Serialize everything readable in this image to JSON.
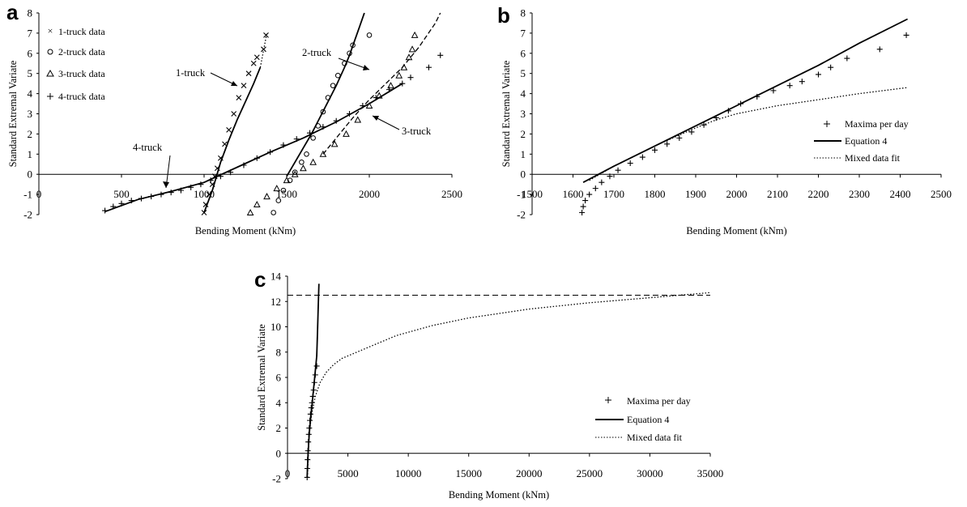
{
  "chart_data": [
    {
      "panel": "a",
      "type": "scatter",
      "xlabel": "Bending Moment (kNm)",
      "ylabel": "Standard Extremal Variate",
      "xlim": [
        0,
        2500
      ],
      "ylim": [
        -2,
        8
      ],
      "xticks": [
        "0",
        "500",
        "1000",
        "1500",
        "2000",
        "2500"
      ],
      "yticks": [
        "-2",
        "-1",
        "0",
        "1",
        "2",
        "3",
        "4",
        "5",
        "6",
        "7",
        "8"
      ],
      "legend_position": "top-left",
      "legend": [
        {
          "label": "1-truck data",
          "marker": "x"
        },
        {
          "label": "2-truck data",
          "marker": "o"
        },
        {
          "label": "3-truck data",
          "marker": "triangle"
        },
        {
          "label": "4-truck data",
          "marker": "+"
        }
      ],
      "annotations": [
        "1-truck",
        "2-truck",
        "3-truck",
        "4-truck"
      ],
      "series": [
        {
          "name": "1-truck data",
          "marker": "x",
          "x": [
            1000,
            1010,
            1030,
            1050,
            1065,
            1080,
            1100,
            1125,
            1150,
            1180,
            1210,
            1240,
            1270,
            1300,
            1320,
            1360,
            1375
          ],
          "y": [
            -1.9,
            -1.5,
            -1.0,
            -0.5,
            -0.1,
            0.3,
            0.8,
            1.5,
            2.2,
            3.0,
            3.8,
            4.4,
            5.0,
            5.5,
            5.8,
            6.2,
            6.9
          ]
        },
        {
          "name": "2-truck data",
          "marker": "o",
          "x": [
            1420,
            1450,
            1480,
            1520,
            1550,
            1590,
            1620,
            1660,
            1690,
            1720,
            1750,
            1780,
            1810,
            1850,
            1880,
            1900,
            2000
          ],
          "y": [
            -1.9,
            -1.3,
            -0.8,
            -0.3,
            0.1,
            0.6,
            1.0,
            1.8,
            2.4,
            3.1,
            3.8,
            4.4,
            4.9,
            5.5,
            6.0,
            6.4,
            6.9
          ]
        },
        {
          "name": "3-truck data",
          "marker": "triangle",
          "x": [
            1280,
            1320,
            1380,
            1440,
            1500,
            1550,
            1600,
            1660,
            1720,
            1790,
            1860,
            1930,
            2000,
            2060,
            2130,
            2180,
            2210,
            2240,
            2260,
            2275
          ],
          "y": [
            -1.9,
            -1.5,
            -1.1,
            -0.7,
            -0.3,
            0.0,
            0.3,
            0.6,
            1.0,
            1.5,
            2.0,
            2.7,
            3.4,
            3.9,
            4.4,
            4.9,
            5.3,
            5.8,
            6.2,
            6.9
          ]
        },
        {
          "name": "4-truck data",
          "marker": "+",
          "x": [
            400,
            450,
            500,
            560,
            620,
            680,
            740,
            800,
            860,
            920,
            980,
            1040,
            1100,
            1160,
            1240,
            1320,
            1400,
            1480,
            1560,
            1640,
            1720,
            1800,
            1880,
            1960,
            2040,
            2120,
            2200,
            2250,
            2360,
            2430
          ],
          "y": [
            -1.8,
            -1.6,
            -1.45,
            -1.3,
            -1.2,
            -1.1,
            -1.0,
            -0.9,
            -0.8,
            -0.65,
            -0.5,
            -0.3,
            -0.1,
            0.1,
            0.45,
            0.8,
            1.1,
            1.45,
            1.75,
            2.05,
            2.35,
            2.65,
            3.0,
            3.4,
            3.8,
            4.2,
            4.5,
            4.8,
            5.3,
            5.9
          ]
        }
      ],
      "fits": [
        {
          "name": "1-truck fit",
          "style": "solid",
          "x": [
            1000,
            1050,
            1100,
            1150,
            1200,
            1250,
            1300,
            1340
          ],
          "y": [
            -1.9,
            -0.8,
            0.6,
            1.7,
            2.7,
            3.6,
            4.5,
            5.3
          ]
        },
        {
          "name": "1-truck fit upper",
          "style": "dotted",
          "x": [
            1340,
            1380
          ],
          "y": [
            5.3,
            7.0
          ]
        },
        {
          "name": "2-truck fit",
          "style": "solid",
          "x": [
            1500,
            1550,
            1600,
            1650,
            1700,
            1750,
            1800,
            1850,
            1880,
            1910,
            1940,
            1970
          ],
          "y": [
            -0.1,
            0.6,
            1.3,
            2.0,
            2.8,
            3.6,
            4.4,
            5.3,
            5.9,
            6.6,
            7.3,
            8.0
          ]
        },
        {
          "name": "3-truck fit",
          "style": "dashed",
          "x": [
            1720,
            1800,
            1900,
            2000,
            2100,
            2200,
            2300,
            2400,
            2430
          ],
          "y": [
            1.0,
            1.8,
            2.8,
            3.7,
            4.5,
            5.3,
            6.3,
            7.5,
            8.0
          ]
        },
        {
          "name": "4-truck fit",
          "style": "solid",
          "x": [
            400,
            600,
            800,
            1000,
            1200,
            1400,
            1600,
            1800,
            2000,
            2200
          ],
          "y": [
            -1.85,
            -1.25,
            -0.85,
            -0.4,
            0.35,
            1.1,
            1.8,
            2.6,
            3.5,
            4.5
          ]
        }
      ]
    },
    {
      "panel": "b",
      "type": "scatter",
      "xlabel": "Bending Moment (kNm)",
      "ylabel": "Standard Extremal Variate",
      "xlim": [
        1500,
        2500
      ],
      "ylim": [
        -2,
        8
      ],
      "xticks": [
        "1500",
        "1600",
        "1700",
        "1800",
        "1900",
        "2000",
        "2100",
        "2200",
        "2300",
        "2400",
        "2500"
      ],
      "yticks": [
        "-2",
        "-1",
        "0",
        "1",
        "2",
        "3",
        "4",
        "5",
        "6",
        "7",
        "8"
      ],
      "legend_position": "lower-right",
      "legend": [
        {
          "label": "Maxima per day",
          "style": "plus"
        },
        {
          "label": "Equation 4",
          "style": "solid"
        },
        {
          "label": "Mixed data fit",
          "style": "dotted"
        }
      ],
      "series": [
        {
          "name": "Maxima per day",
          "marker": "+",
          "x": [
            1622,
            1625,
            1630,
            1640,
            1655,
            1670,
            1690,
            1710,
            1740,
            1770,
            1800,
            1830,
            1860,
            1890,
            1920,
            1950,
            1980,
            2010,
            2050,
            2090,
            2130,
            2160,
            2200,
            2230,
            2270,
            2350,
            2415
          ],
          "y": [
            -1.9,
            -1.6,
            -1.3,
            -1.0,
            -0.7,
            -0.4,
            -0.1,
            0.2,
            0.55,
            0.85,
            1.2,
            1.5,
            1.8,
            2.1,
            2.45,
            2.8,
            3.15,
            3.5,
            3.85,
            4.15,
            4.4,
            4.6,
            4.95,
            5.3,
            5.75,
            6.2,
            6.9
          ]
        }
      ],
      "fits": [
        {
          "name": "Equation 4",
          "style": "solid",
          "x": [
            1625,
            1700,
            1800,
            1900,
            2000,
            2100,
            2200,
            2300,
            2418
          ],
          "y": [
            -0.4,
            0.4,
            1.4,
            2.4,
            3.4,
            4.4,
            5.4,
            6.5,
            7.7
          ]
        },
        {
          "name": "Mixed data fit",
          "style": "dotted",
          "x": [
            1640,
            1700,
            1800,
            1900,
            1950,
            2000,
            2100,
            2200,
            2300,
            2418
          ],
          "y": [
            -0.3,
            0.4,
            1.4,
            2.3,
            2.7,
            3.0,
            3.4,
            3.7,
            4.0,
            4.3
          ]
        }
      ]
    },
    {
      "panel": "c",
      "type": "scatter",
      "xlabel": "Bending Moment (kNm)",
      "ylabel": "Standard Extremal Variate",
      "xlim": [
        0,
        35000
      ],
      "ylim": [
        -2,
        14
      ],
      "xticks": [
        "0",
        "5000",
        "10000",
        "15000",
        "20000",
        "25000",
        "30000",
        "35000"
      ],
      "yticks": [
        "-2",
        "0",
        "2",
        "4",
        "6",
        "8",
        "10",
        "12",
        "14"
      ],
      "legend_position": "lower-right",
      "legend": [
        {
          "label": "Maxima per day",
          "style": "plus"
        },
        {
          "label": "Equation 4",
          "style": "solid"
        },
        {
          "label": "Mixed data fit",
          "style": "dotted"
        }
      ],
      "reference_line": {
        "style": "dashed",
        "y": 12.5
      },
      "series": [
        {
          "name": "Maxima per day",
          "marker": "+",
          "x": [
            1625,
            1640,
            1660,
            1690,
            1720,
            1760,
            1800,
            1850,
            1900,
            1960,
            2020,
            2090,
            2160,
            2230,
            2300,
            2418
          ],
          "y": [
            -1.9,
            -1.2,
            -0.5,
            0.2,
            0.9,
            1.5,
            2.0,
            2.6,
            3.1,
            3.6,
            4.0,
            4.5,
            5.0,
            5.6,
            6.2,
            6.9
          ]
        }
      ],
      "fits": [
        {
          "name": "Equation 4",
          "style": "solid",
          "x": [
            1625,
            1700,
            1800,
            1900,
            2000,
            2100,
            2200,
            2300,
            2418,
            2480,
            2540,
            2600
          ],
          "y": [
            -1.9,
            0.0,
            1.5,
            2.6,
            3.5,
            4.5,
            5.5,
            6.5,
            7.7,
            9.5,
            11.5,
            13.4
          ]
        },
        {
          "name": "Mixed data fit",
          "style": "dotted",
          "x": [
            1650,
            1800,
            2000,
            2300,
            2700,
            3200,
            3800,
            4500,
            5500,
            7000,
            9000,
            12000,
            15000,
            20000,
            25000,
            30000,
            35000
          ],
          "y": [
            -1.9,
            1.5,
            3.1,
            4.5,
            5.6,
            6.4,
            7.0,
            7.5,
            7.9,
            8.5,
            9.3,
            10.1,
            10.7,
            11.4,
            11.9,
            12.3,
            12.7
          ]
        }
      ]
    }
  ]
}
